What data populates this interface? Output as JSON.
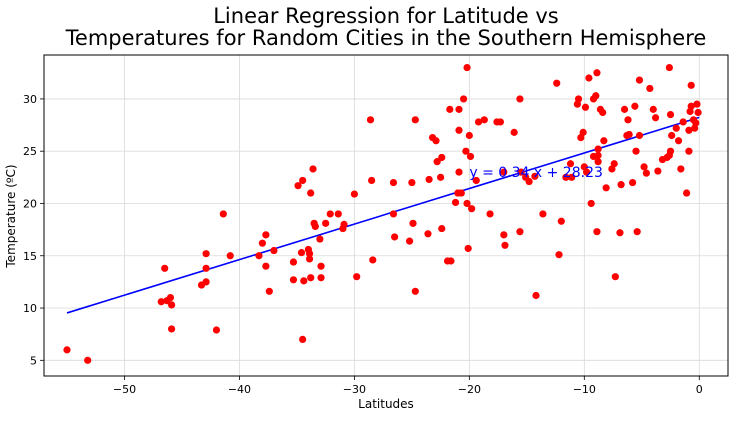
{
  "chart_data": {
    "type": "scatter",
    "title_lines": [
      "Linear Regression for Latitude vs",
      "Temperatures for Random Cities in the Southern Hemisphere"
    ],
    "xlabel": "Latitudes",
    "ylabel": "Temperature (ºC)",
    "xlim": [
      -57,
      2.5
    ],
    "ylim": [
      3.5,
      34.2
    ],
    "x_ticks": [
      -50,
      -40,
      -30,
      -20,
      -10,
      0
    ],
    "y_ticks": [
      5,
      10,
      15,
      20,
      25,
      30
    ],
    "x_tick_labels": [
      "−50",
      "−40",
      "−30",
      "−20",
      "−10",
      "0"
    ],
    "y_tick_labels": [
      "5",
      "10",
      "15",
      "20",
      "25",
      "30"
    ],
    "grid": true,
    "point_color": "#ff0000",
    "line_color": "#0000ff",
    "annotation": {
      "text": "y = 0.34 x + 28.23",
      "x": -20,
      "y": 23
    },
    "regression": {
      "slope": 0.34,
      "intercept": 28.23,
      "x_range": [
        -55,
        0
      ]
    },
    "points": [
      [
        -55,
        6
      ],
      [
        -53.2,
        5
      ],
      [
        -46.5,
        13.8
      ],
      [
        -46.8,
        10.6
      ],
      [
        -46.3,
        10.7
      ],
      [
        -46,
        11
      ],
      [
        -45.9,
        10.3
      ],
      [
        -45.9,
        8
      ],
      [
        -43.3,
        12.2
      ],
      [
        -42.9,
        13.8
      ],
      [
        -42.9,
        15.2
      ],
      [
        -42.9,
        12.5
      ],
      [
        -42,
        7.9
      ],
      [
        -41.4,
        19
      ],
      [
        -40.8,
        15
      ],
      [
        -38.3,
        15
      ],
      [
        -38,
        16.2
      ],
      [
        -37.7,
        17
      ],
      [
        -37.7,
        14
      ],
      [
        -37.4,
        11.6
      ],
      [
        -37,
        15.5
      ],
      [
        -35.3,
        12.7
      ],
      [
        -35.3,
        14.4
      ],
      [
        -34.9,
        21.7
      ],
      [
        -34.5,
        22.2
      ],
      [
        -34.6,
        15.3
      ],
      [
        -34.4,
        12.6
      ],
      [
        -34.5,
        7
      ],
      [
        -34,
        15.6
      ],
      [
        -33.9,
        15.2
      ],
      [
        -33.9,
        14.7
      ],
      [
        -33.8,
        12.9
      ],
      [
        -33.8,
        21
      ],
      [
        -33.6,
        23.3
      ],
      [
        -33.5,
        18.1
      ],
      [
        -33.4,
        17.8
      ],
      [
        -33,
        16.6
      ],
      [
        -32.9,
        14
      ],
      [
        -32.9,
        12.9
      ],
      [
        -32.5,
        18.1
      ],
      [
        -32.1,
        19
      ],
      [
        -31.4,
        19
      ],
      [
        -31,
        17.6
      ],
      [
        -30.9,
        18
      ],
      [
        -30,
        20.9
      ],
      [
        -29.8,
        13
      ],
      [
        -28.6,
        28
      ],
      [
        -28.5,
        22.2
      ],
      [
        -28.4,
        14.6
      ],
      [
        -26.6,
        22
      ],
      [
        -26.6,
        19
      ],
      [
        -26.5,
        16.8
      ],
      [
        -25.2,
        16.4
      ],
      [
        -25,
        22
      ],
      [
        -24.9,
        18.1
      ],
      [
        -24.7,
        28
      ],
      [
        -24.7,
        11.6
      ],
      [
        -23.6,
        17.1
      ],
      [
        -23.5,
        22.3
      ],
      [
        -23.2,
        26.3
      ],
      [
        -22.9,
        26
      ],
      [
        -22.8,
        24
      ],
      [
        -22.5,
        22.5
      ],
      [
        -22.4,
        24.4
      ],
      [
        -22.4,
        17.6
      ],
      [
        -21.9,
        14.5
      ],
      [
        -21.7,
        29
      ],
      [
        -21.6,
        14.5
      ],
      [
        -21.2,
        20.1
      ],
      [
        -21,
        21
      ],
      [
        -20.9,
        27
      ],
      [
        -20.9,
        29
      ],
      [
        -20.9,
        23
      ],
      [
        -20.7,
        21
      ],
      [
        -20.5,
        30
      ],
      [
        -20.3,
        25
      ],
      [
        -20.2,
        33
      ],
      [
        -20.2,
        20
      ],
      [
        -20.1,
        15.7
      ],
      [
        -20,
        26.5
      ],
      [
        -19.9,
        24.5
      ],
      [
        -19.8,
        19.5
      ],
      [
        -19.4,
        22.2
      ],
      [
        -19.2,
        27.8
      ],
      [
        -18.7,
        28
      ],
      [
        -18.2,
        19
      ],
      [
        -17.6,
        27.8
      ],
      [
        -17.3,
        27.8
      ],
      [
        -17,
        23
      ],
      [
        -17,
        17
      ],
      [
        -16.9,
        16
      ],
      [
        -16.1,
        26.8
      ],
      [
        -15.6,
        30
      ],
      [
        -15.6,
        17.3
      ],
      [
        -15.5,
        23
      ],
      [
        -15.1,
        22.5
      ],
      [
        -14.8,
        22.1
      ],
      [
        -14.3,
        22.6
      ],
      [
        -14.2,
        11.2
      ],
      [
        -13.6,
        19
      ],
      [
        -12.4,
        31.5
      ],
      [
        -12.2,
        15.1
      ],
      [
        -12,
        18.3
      ],
      [
        -11.6,
        22.5
      ],
      [
        -11.2,
        23.8
      ],
      [
        -11.1,
        22.5
      ],
      [
        -10.6,
        29.5
      ],
      [
        -10.5,
        30
      ],
      [
        -10.3,
        26.3
      ],
      [
        -10.1,
        26.8
      ],
      [
        -10,
        23.5
      ],
      [
        -9.9,
        29.2
      ],
      [
        -9.8,
        23
      ],
      [
        -9.6,
        32
      ],
      [
        -9.4,
        20
      ],
      [
        -9.2,
        24.5
      ],
      [
        -9.2,
        30
      ],
      [
        -9,
        30.3
      ],
      [
        -8.9,
        32.5
      ],
      [
        -8.9,
        17.3
      ],
      [
        -8.8,
        24
      ],
      [
        -8.8,
        24.6
      ],
      [
        -8.8,
        25.2
      ],
      [
        -8.6,
        29
      ],
      [
        -8.4,
        28.7
      ],
      [
        -8.3,
        26
      ],
      [
        -8.1,
        21.5
      ],
      [
        -7.6,
        23.3
      ],
      [
        -7.4,
        23.8
      ],
      [
        -7.3,
        13
      ],
      [
        -6.9,
        17.2
      ],
      [
        -6.8,
        21.8
      ],
      [
        -6.5,
        29
      ],
      [
        -6.3,
        26.5
      ],
      [
        -6.2,
        28
      ],
      [
        -6.1,
        26.6
      ],
      [
        -5.8,
        22
      ],
      [
        -5.6,
        29.3
      ],
      [
        -5.5,
        25
      ],
      [
        -5.4,
        17.3
      ],
      [
        -5.2,
        26.5
      ],
      [
        -5.2,
        31.8
      ],
      [
        -4.8,
        23.5
      ],
      [
        -4.6,
        22.9
      ],
      [
        -4.3,
        31
      ],
      [
        -4,
        29
      ],
      [
        -3.8,
        28.2
      ],
      [
        -3.6,
        23.1
      ],
      [
        -3.2,
        24.2
      ],
      [
        -2.8,
        24.4
      ],
      [
        -2.6,
        33
      ],
      [
        -2.6,
        24.6
      ],
      [
        -2.5,
        25
      ],
      [
        -2.5,
        28.5
      ],
      [
        -2.4,
        26.5
      ],
      [
        -2,
        27.2
      ],
      [
        -1.8,
        26
      ],
      [
        -1.6,
        23.3
      ],
      [
        -1.4,
        27.8
      ],
      [
        -1.1,
        21
      ],
      [
        -0.9,
        25
      ],
      [
        -0.9,
        27
      ],
      [
        -0.8,
        28.8
      ],
      [
        -0.7,
        29.3
      ],
      [
        -0.7,
        31.3
      ],
      [
        -0.5,
        28
      ],
      [
        -0.4,
        27.2
      ],
      [
        -0.3,
        27.7
      ],
      [
        -0.2,
        29.5
      ],
      [
        -0.1,
        28.7
      ]
    ]
  }
}
